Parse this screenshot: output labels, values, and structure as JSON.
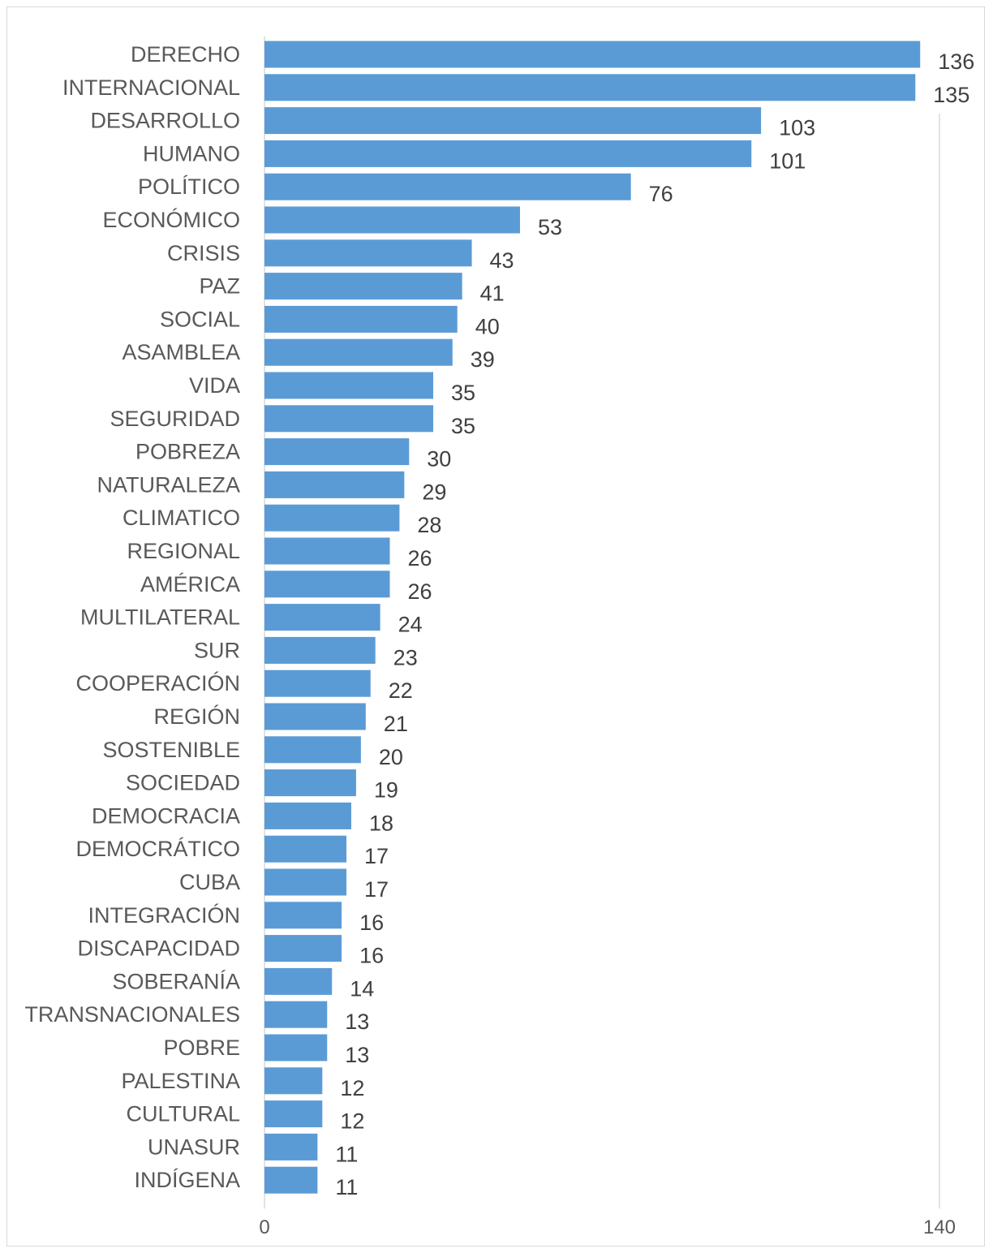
{
  "chart_data": {
    "type": "bar",
    "orientation": "horizontal",
    "categories": [
      "DERECHO",
      "INTERNACIONAL",
      "DESARROLLO",
      "HUMANO",
      "POLÍTICO",
      "ECONÓMICO",
      "CRISIS",
      "PAZ",
      "SOCIAL",
      "ASAMBLEA",
      "VIDA",
      "SEGURIDAD",
      "POBREZA",
      "NATURALEZA",
      "CLIMATICO",
      "REGIONAL",
      "AMÉRICA",
      "MULTILATERAL",
      "SUR",
      "COOPERACIÓN",
      "REGIÓN",
      "SOSTENIBLE",
      "SOCIEDAD",
      "DEMOCRACIA",
      "DEMOCRÁTICO",
      "CUBA",
      "INTEGRACIÓN",
      "DISCAPACIDAD",
      "SOBERANÍA",
      "TRANSNACIONALES",
      "POBRE",
      "PALESTINA",
      "CULTURAL",
      "UNASUR",
      "INDÍGENA"
    ],
    "values": [
      136,
      135,
      103,
      101,
      76,
      53,
      43,
      41,
      40,
      39,
      35,
      35,
      30,
      29,
      28,
      26,
      26,
      24,
      23,
      22,
      21,
      20,
      19,
      18,
      17,
      17,
      16,
      16,
      14,
      13,
      13,
      12,
      12,
      11,
      11
    ],
    "xlim": [
      0,
      140
    ],
    "ticks": [
      "0",
      "140"
    ],
    "data_labels": true,
    "grid": false,
    "title": "",
    "xlabel": "",
    "ylabel": "",
    "bar_color": "#5b9bd5"
  }
}
